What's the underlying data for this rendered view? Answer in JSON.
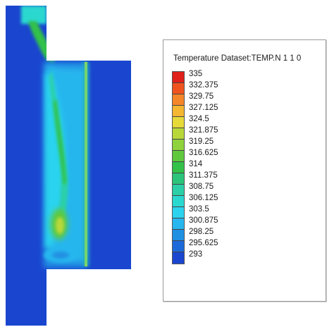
{
  "legend": {
    "title": "Temperature Dataset:TEMP.N 1 1 0",
    "levels": [
      {
        "label": "335",
        "color": "#e0201a"
      },
      {
        "label": "332.375",
        "color": "#f0541e"
      },
      {
        "label": "329.75",
        "color": "#f5862a"
      },
      {
        "label": "327.125",
        "color": "#f5b631"
      },
      {
        "label": "324.5",
        "color": "#e6d93a"
      },
      {
        "label": "321.875",
        "color": "#b8d83a"
      },
      {
        "label": "319.25",
        "color": "#8fd23c"
      },
      {
        "label": "316.625",
        "color": "#5fc93e"
      },
      {
        "label": "314",
        "color": "#33c14a"
      },
      {
        "label": "311.375",
        "color": "#2bc47a"
      },
      {
        "label": "308.75",
        "color": "#2bd0a8"
      },
      {
        "label": "306.125",
        "color": "#2ad8d0"
      },
      {
        "label": "303.5",
        "color": "#2cd3ef"
      },
      {
        "label": "300.875",
        "color": "#27b6ee"
      },
      {
        "label": "298.25",
        "color": "#2090e3"
      },
      {
        "label": "295.625",
        "color": "#1c6ada"
      },
      {
        "label": "293",
        "color": "#1a46cf"
      }
    ]
  }
}
